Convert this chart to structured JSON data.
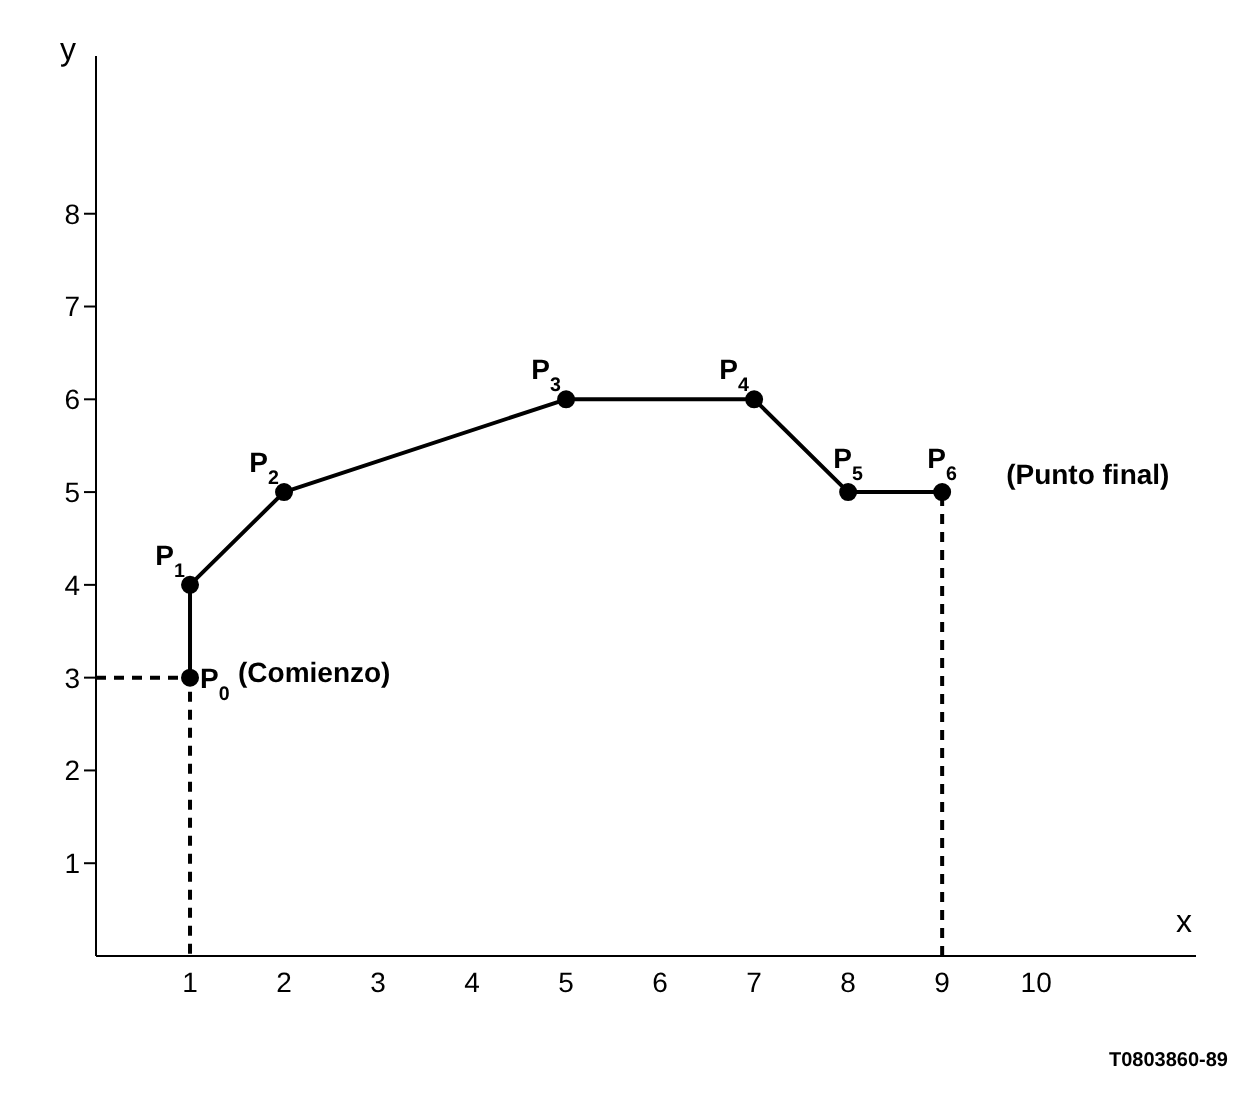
{
  "chart_data": {
    "type": "line",
    "xlabel": "x",
    "ylabel": "y",
    "xlim": [
      0,
      11.7
    ],
    "ylim": [
      0,
      9.7
    ],
    "xticks": [
      1,
      2,
      3,
      4,
      5,
      6,
      7,
      8,
      9,
      10
    ],
    "yticks": [
      1,
      2,
      3,
      4,
      5,
      6,
      7,
      8
    ],
    "series": [
      {
        "color": "#000000",
        "x": [
          1,
          1,
          2,
          5,
          7,
          8,
          9
        ],
        "values": [
          3,
          4,
          5,
          6,
          6,
          5,
          5
        ],
        "marker": "circle",
        "line_style": "solid"
      },
      {
        "color": "#000000",
        "x": [
          0,
          1,
          1
        ],
        "values": [
          3,
          3,
          0
        ],
        "marker": "none",
        "line_style": "dashed"
      },
      {
        "color": "#000000",
        "x": [
          9,
          9
        ],
        "values": [
          0,
          5
        ],
        "marker": "none",
        "line_style": "dashed"
      }
    ],
    "annotations": [
      {
        "text": "P$_{0}$",
        "x": 1,
        "y": 3
      },
      {
        "text": "P$_{1}$",
        "x": 1,
        "y": 4
      },
      {
        "text": "P$_{2}$",
        "x": 2,
        "y": 5
      },
      {
        "text": "P$_{3}$",
        "x": 5,
        "y": 6
      },
      {
        "text": "P$_{4}$",
        "x": 7,
        "y": 6
      },
      {
        "text": "P$_{5}$",
        "x": 8,
        "y": 5
      },
      {
        "text": "P$_{6}$",
        "x": 9,
        "y": 5
      },
      {
        "text": "(Comienzo)",
        "x": 1,
        "y": 3
      },
      {
        "text": "(Punto final)",
        "x": 9,
        "y": 5
      },
      "T0803860-89"
    ]
  }
}
